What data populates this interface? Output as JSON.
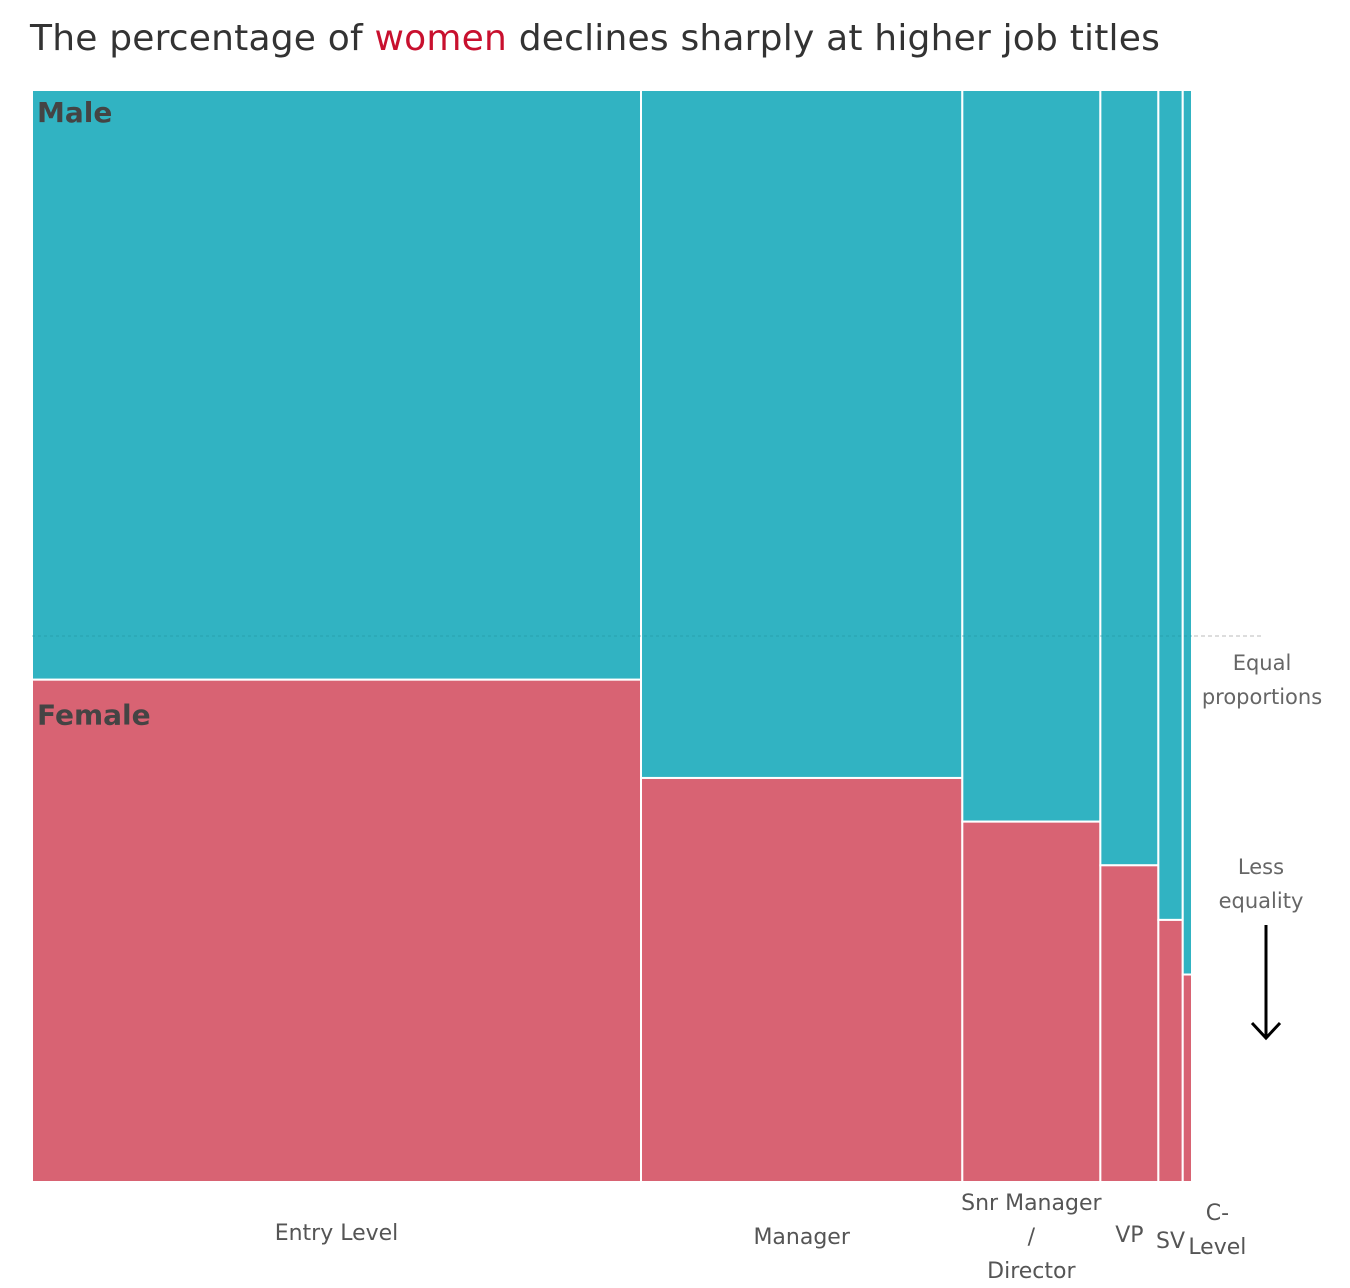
{
  "title": {
    "before": "The percentage of ",
    "highlight": "women",
    "after": " declines sharply at higher job titles"
  },
  "chart_data": {
    "type": "mosaic",
    "title": "The percentage of women declines sharply at higher job titles",
    "categories": [
      "Entry Level",
      "Manager",
      "Snr Manager / Director",
      "VP",
      "SV",
      "C-Level"
    ],
    "category_labels": [
      [
        "Entry Level"
      ],
      [
        "Manager"
      ],
      [
        "Snr Manager",
        "/",
        "Director"
      ],
      [
        "VP"
      ],
      [
        "SV"
      ],
      [
        "C-",
        "Level"
      ]
    ],
    "category_share": [
      52.5,
      27.7,
      11.9,
      5.0,
      2.1,
      0.8
    ],
    "series": [
      {
        "name": "Male",
        "values": [
          54,
          63,
          67,
          71,
          76,
          81
        ]
      },
      {
        "name": "Female",
        "values": [
          46,
          37,
          33,
          29,
          24,
          19
        ]
      }
    ],
    "colors": {
      "Male": "#31b3c2",
      "Female": "#d86373"
    },
    "reference_line": {
      "value": 50,
      "label": [
        "Equal",
        "proportions"
      ]
    },
    "annotation": {
      "label": [
        "Less",
        "equality"
      ],
      "arrow": "down"
    }
  }
}
